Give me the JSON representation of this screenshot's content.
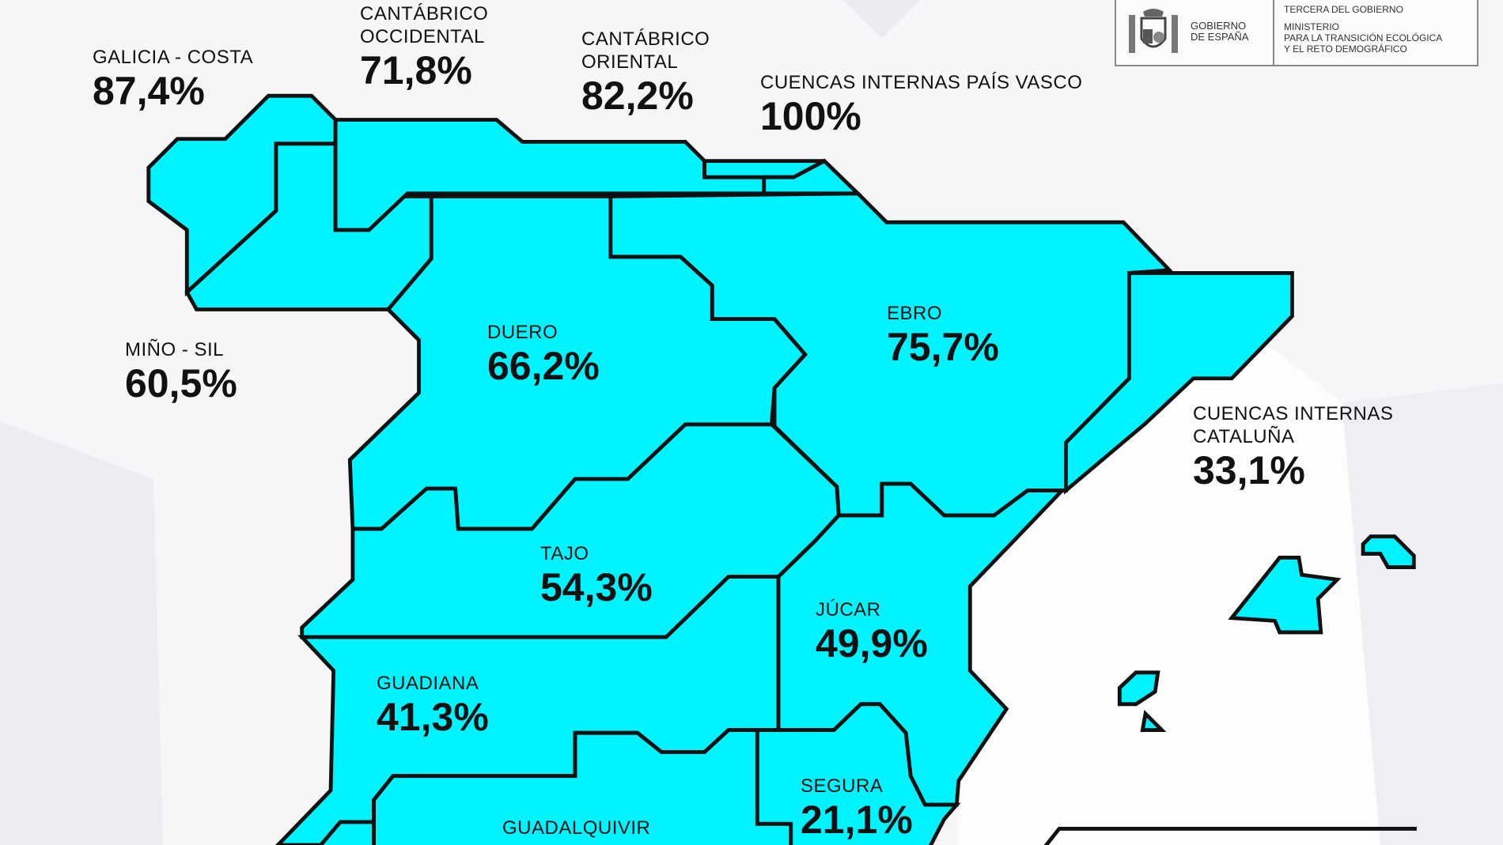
{
  "colors": {
    "region_fill": "#00f4ff",
    "border": "#111111",
    "background": "#f6f5f8"
  },
  "logo": {
    "gobierno": "GOBIERNO DE ESPAÑA",
    "vicepresidencia": "TERCERA DEL GOBIERNO",
    "ministerio": [
      "MINISTERIO",
      "PARA LA TRANSICIÓN ECOLÓGICA",
      "Y EL RETO DEMOGRÁFICO"
    ],
    "crest_icon": "spain-coat-of-arms-icon"
  },
  "basins": [
    {
      "id": "galicia-costa",
      "name": "GALICIA - COSTA",
      "value": "87,4%"
    },
    {
      "id": "cantabrico-occidental",
      "name": "CANTÁBRICO OCCIDENTAL",
      "value": "71,8%"
    },
    {
      "id": "cantabrico-oriental",
      "name": "CANTÁBRICO ORIENTAL",
      "value": "82,2%"
    },
    {
      "id": "cuencas-internas-pais-vasco",
      "name": "CUENCAS INTERNAS PAÍS VASCO",
      "value": "100%"
    },
    {
      "id": "mino-sil",
      "name": "MIÑO - SIL",
      "value": "60,5%"
    },
    {
      "id": "duero",
      "name": "DUERO",
      "value": "66,2%"
    },
    {
      "id": "ebro",
      "name": "EBRO",
      "value": "75,7%"
    },
    {
      "id": "cuencas-internas-cataluna",
      "name": "CUENCAS INTERNAS CATALUÑA",
      "value": "33,1%"
    },
    {
      "id": "tajo",
      "name": "TAJO",
      "value": "54,3%"
    },
    {
      "id": "jucar",
      "name": "JÚCAR",
      "value": "49,9%"
    },
    {
      "id": "guadiana",
      "name": "GUADIANA",
      "value": "41,3%"
    },
    {
      "id": "segura",
      "name": "SEGURA",
      "value": "21,1%"
    },
    {
      "id": "guadalquivir",
      "name": "GUADALQUIVIR",
      "value": ""
    }
  ]
}
